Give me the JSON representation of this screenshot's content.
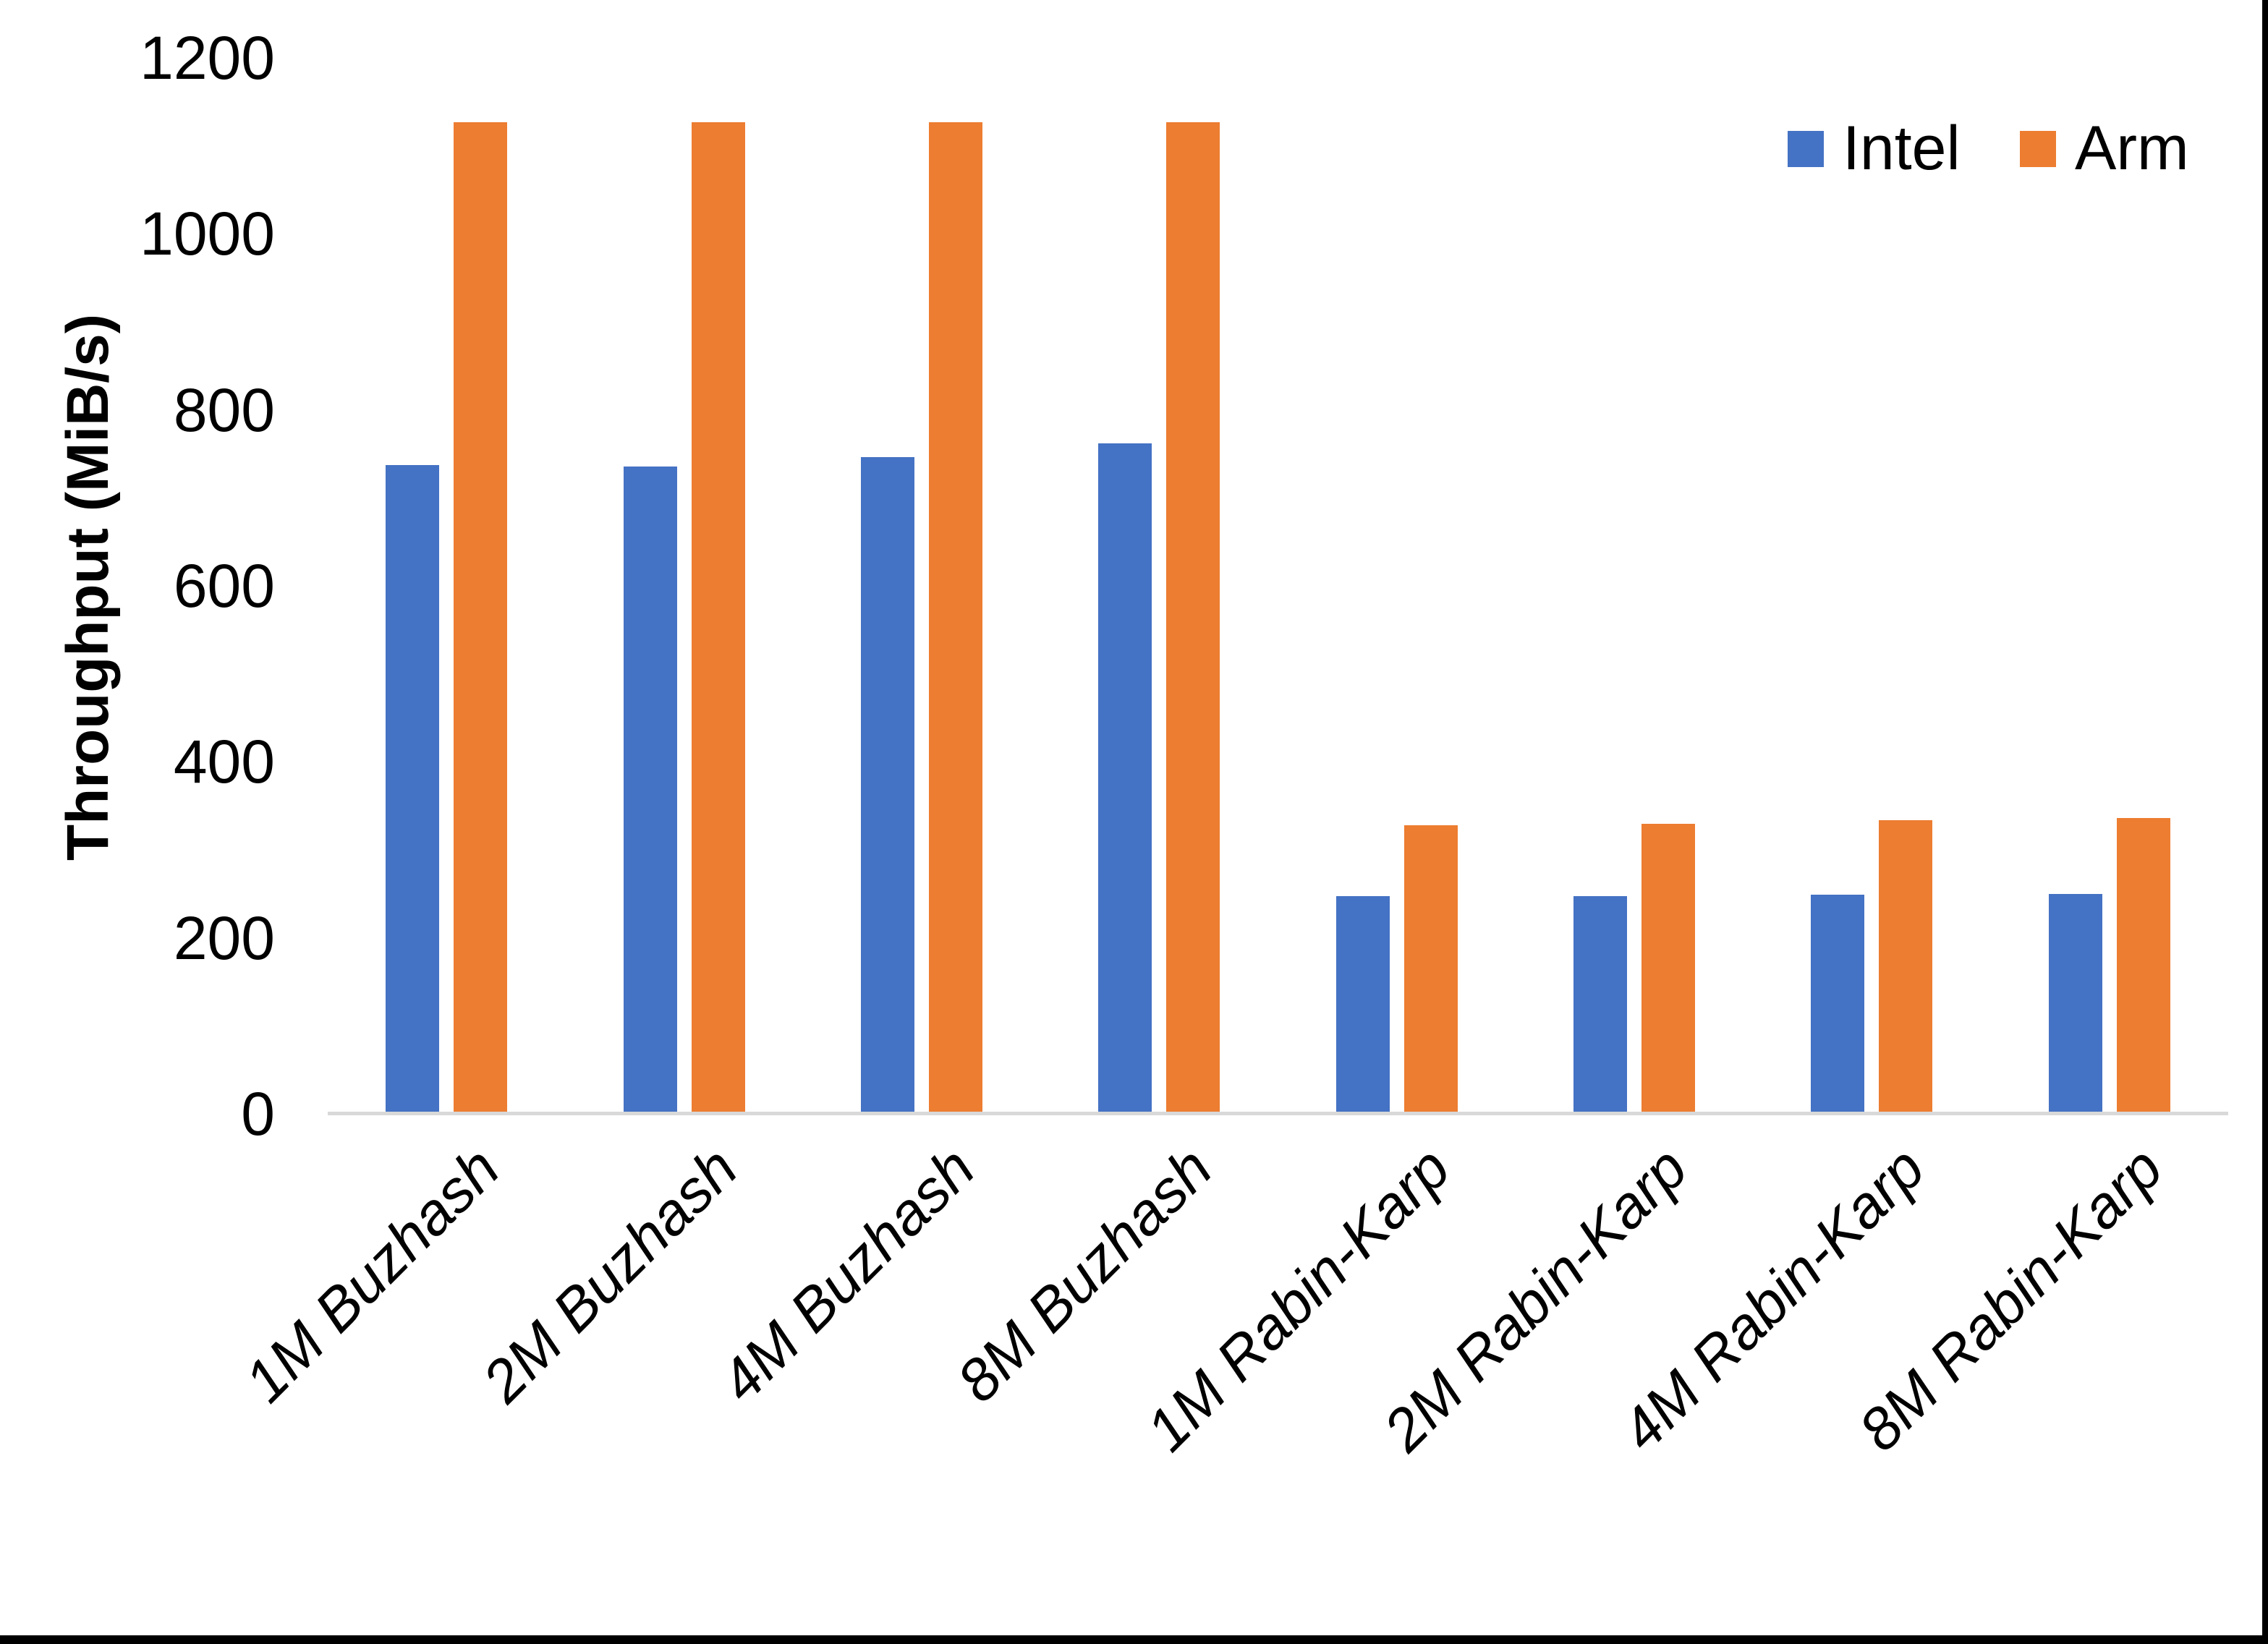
{
  "chart_data": {
    "type": "bar",
    "title": "",
    "xlabel": "",
    "ylabel": "Throughput (MiB/s)",
    "categories": [
      "1M Buzhash",
      "2M Buzhash",
      "4M Buzhash",
      "8M Buzhash",
      "1M Rabin-Karp",
      "2M Rabin-Karp",
      "4M Rabin-Karp",
      "8M Rabin-Karp"
    ],
    "series": [
      {
        "name": "Intel",
        "color": "#4472C4",
        "values": [
          737,
          736,
          746,
          762,
          247,
          247,
          249,
          250
        ]
      },
      {
        "name": "Arm",
        "color": "#ED7D31",
        "values": [
          1127,
          1127,
          1127,
          1127,
          328,
          330,
          334,
          336
        ]
      }
    ],
    "ylim": [
      0,
      1200
    ],
    "yticks": [
      0,
      200,
      400,
      600,
      800,
      1000,
      1200
    ],
    "grid": false,
    "legend_position": "top-right",
    "baseline_color": "#d9d9d9",
    "frame_color": "#000000"
  }
}
